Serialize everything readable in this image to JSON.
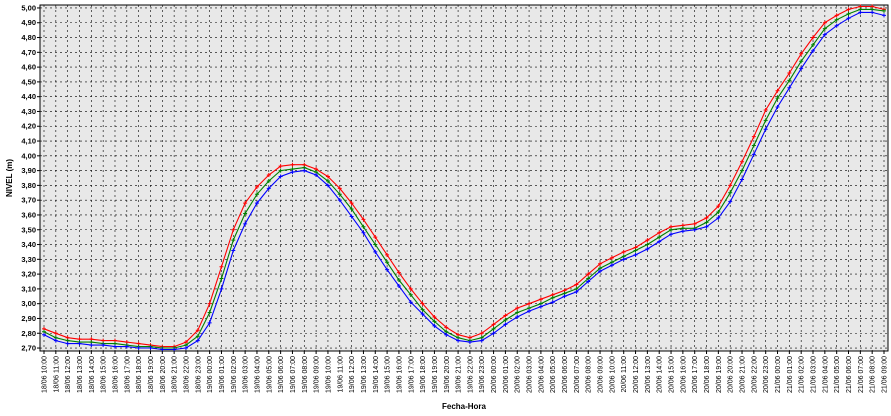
{
  "chart_data": {
    "type": "line",
    "xlabel": "Fecha-Hora",
    "ylabel": "NIVEL (m)",
    "ylim": [
      2.68,
      5.02
    ],
    "yticks": [
      "2,70",
      "2,80",
      "2,90",
      "3,00",
      "3,10",
      "3,20",
      "3,30",
      "3,40",
      "3,50",
      "3,60",
      "3,70",
      "3,80",
      "3,90",
      "4,00",
      "4,10",
      "4,20",
      "4,30",
      "4,40",
      "4,50",
      "4,60",
      "4,70",
      "4,80",
      "4,90",
      "5,00"
    ],
    "grid": true,
    "legend": "none",
    "categories": [
      "18/06 10:00",
      "18/06 11:00",
      "18/06 12:00",
      "18/06 13:00",
      "18/06 14:00",
      "18/06 15:00",
      "18/06 16:00",
      "18/06 17:00",
      "18/06 18:00",
      "18/06 19:00",
      "18/06 20:00",
      "18/06 21:00",
      "18/06 22:00",
      "18/06 23:00",
      "19/06 00:00",
      "19/06 01:00",
      "19/06 02:00",
      "19/06 03:00",
      "19/06 04:00",
      "19/06 05:00",
      "19/06 06:00",
      "19/06 07:00",
      "19/06 08:00",
      "19/06 09:00",
      "19/06 10:00",
      "19/06 11:00",
      "19/06 12:00",
      "19/06 13:00",
      "19/06 14:00",
      "19/06 15:00",
      "19/06 16:00",
      "19/06 17:00",
      "19/06 18:00",
      "19/06 19:00",
      "19/06 20:00",
      "19/06 21:00",
      "19/06 22:00",
      "19/06 23:00",
      "20/06 00:00",
      "20/06 01:00",
      "20/06 02:00",
      "20/06 03:00",
      "20/06 04:00",
      "20/06 05:00",
      "20/06 06:00",
      "20/06 07:00",
      "20/06 08:00",
      "20/06 09:00",
      "20/06 10:00",
      "20/06 11:00",
      "20/06 12:00",
      "20/06 13:00",
      "20/06 14:00",
      "20/06 15:00",
      "20/06 16:00",
      "20/06 17:00",
      "20/06 18:00",
      "20/06 19:00",
      "20/06 20:00",
      "20/06 21:00",
      "20/06 22:00",
      "20/06 23:00",
      "21/06 00:00",
      "21/06 01:00",
      "21/06 02:00",
      "21/06 03:00",
      "21/06 04:00",
      "21/06 05:00",
      "21/06 06:00",
      "21/06 07:00",
      "21/06 08:00",
      "21/06 09:00"
    ],
    "series": [
      {
        "color": "#ff0000",
        "values": [
          2.83,
          2.8,
          2.77,
          2.76,
          2.76,
          2.75,
          2.75,
          2.74,
          2.73,
          2.72,
          2.71,
          2.71,
          2.74,
          2.82,
          3.0,
          3.25,
          3.5,
          3.68,
          3.79,
          3.87,
          3.93,
          3.94,
          3.94,
          3.91,
          3.86,
          3.78,
          3.68,
          3.57,
          3.45,
          3.33,
          3.21,
          3.1,
          3.0,
          2.91,
          2.84,
          2.79,
          2.77,
          2.8,
          2.86,
          2.92,
          2.97,
          3.0,
          3.03,
          3.06,
          3.09,
          3.13,
          3.2,
          3.27,
          3.31,
          3.35,
          3.38,
          3.43,
          3.48,
          3.52,
          3.53,
          3.54,
          3.58,
          3.66,
          3.8,
          3.96,
          4.13,
          4.31,
          4.44,
          4.56,
          4.69,
          4.8,
          4.9,
          4.95,
          4.99,
          5.01,
          5.01,
          4.99
        ]
      },
      {
        "color": "#008000",
        "values": [
          2.81,
          2.77,
          2.75,
          2.74,
          2.74,
          2.73,
          2.73,
          2.72,
          2.71,
          2.71,
          2.7,
          2.7,
          2.72,
          2.78,
          2.94,
          3.17,
          3.43,
          3.61,
          3.74,
          3.83,
          3.9,
          3.91,
          3.92,
          3.89,
          3.83,
          3.74,
          3.64,
          3.52,
          3.4,
          3.28,
          3.16,
          3.06,
          2.96,
          2.88,
          2.81,
          2.77,
          2.75,
          2.77,
          2.83,
          2.89,
          2.94,
          2.97,
          3.0,
          3.04,
          3.07,
          3.1,
          3.17,
          3.24,
          3.28,
          3.32,
          3.36,
          3.4,
          3.45,
          3.5,
          3.51,
          3.51,
          3.55,
          3.62,
          3.75,
          3.9,
          4.07,
          4.24,
          4.39,
          4.51,
          4.64,
          4.75,
          4.86,
          4.92,
          4.96,
          4.99,
          4.99,
          4.98
        ]
      },
      {
        "color": "#0000ff",
        "values": [
          2.79,
          2.75,
          2.73,
          2.73,
          2.72,
          2.72,
          2.71,
          2.71,
          2.7,
          2.7,
          2.69,
          2.69,
          2.7,
          2.75,
          2.87,
          3.1,
          3.36,
          3.54,
          3.68,
          3.78,
          3.86,
          3.89,
          3.9,
          3.87,
          3.8,
          3.7,
          3.59,
          3.48,
          3.35,
          3.23,
          3.12,
          3.01,
          2.93,
          2.85,
          2.79,
          2.75,
          2.74,
          2.75,
          2.8,
          2.86,
          2.91,
          2.95,
          2.98,
          3.01,
          3.05,
          3.08,
          3.15,
          3.22,
          3.26,
          3.3,
          3.33,
          3.37,
          3.42,
          3.47,
          3.49,
          3.5,
          3.52,
          3.58,
          3.69,
          3.84,
          4.01,
          4.18,
          4.33,
          4.46,
          4.59,
          4.71,
          4.82,
          4.88,
          4.93,
          4.97,
          4.97,
          4.95
        ]
      }
    ]
  }
}
